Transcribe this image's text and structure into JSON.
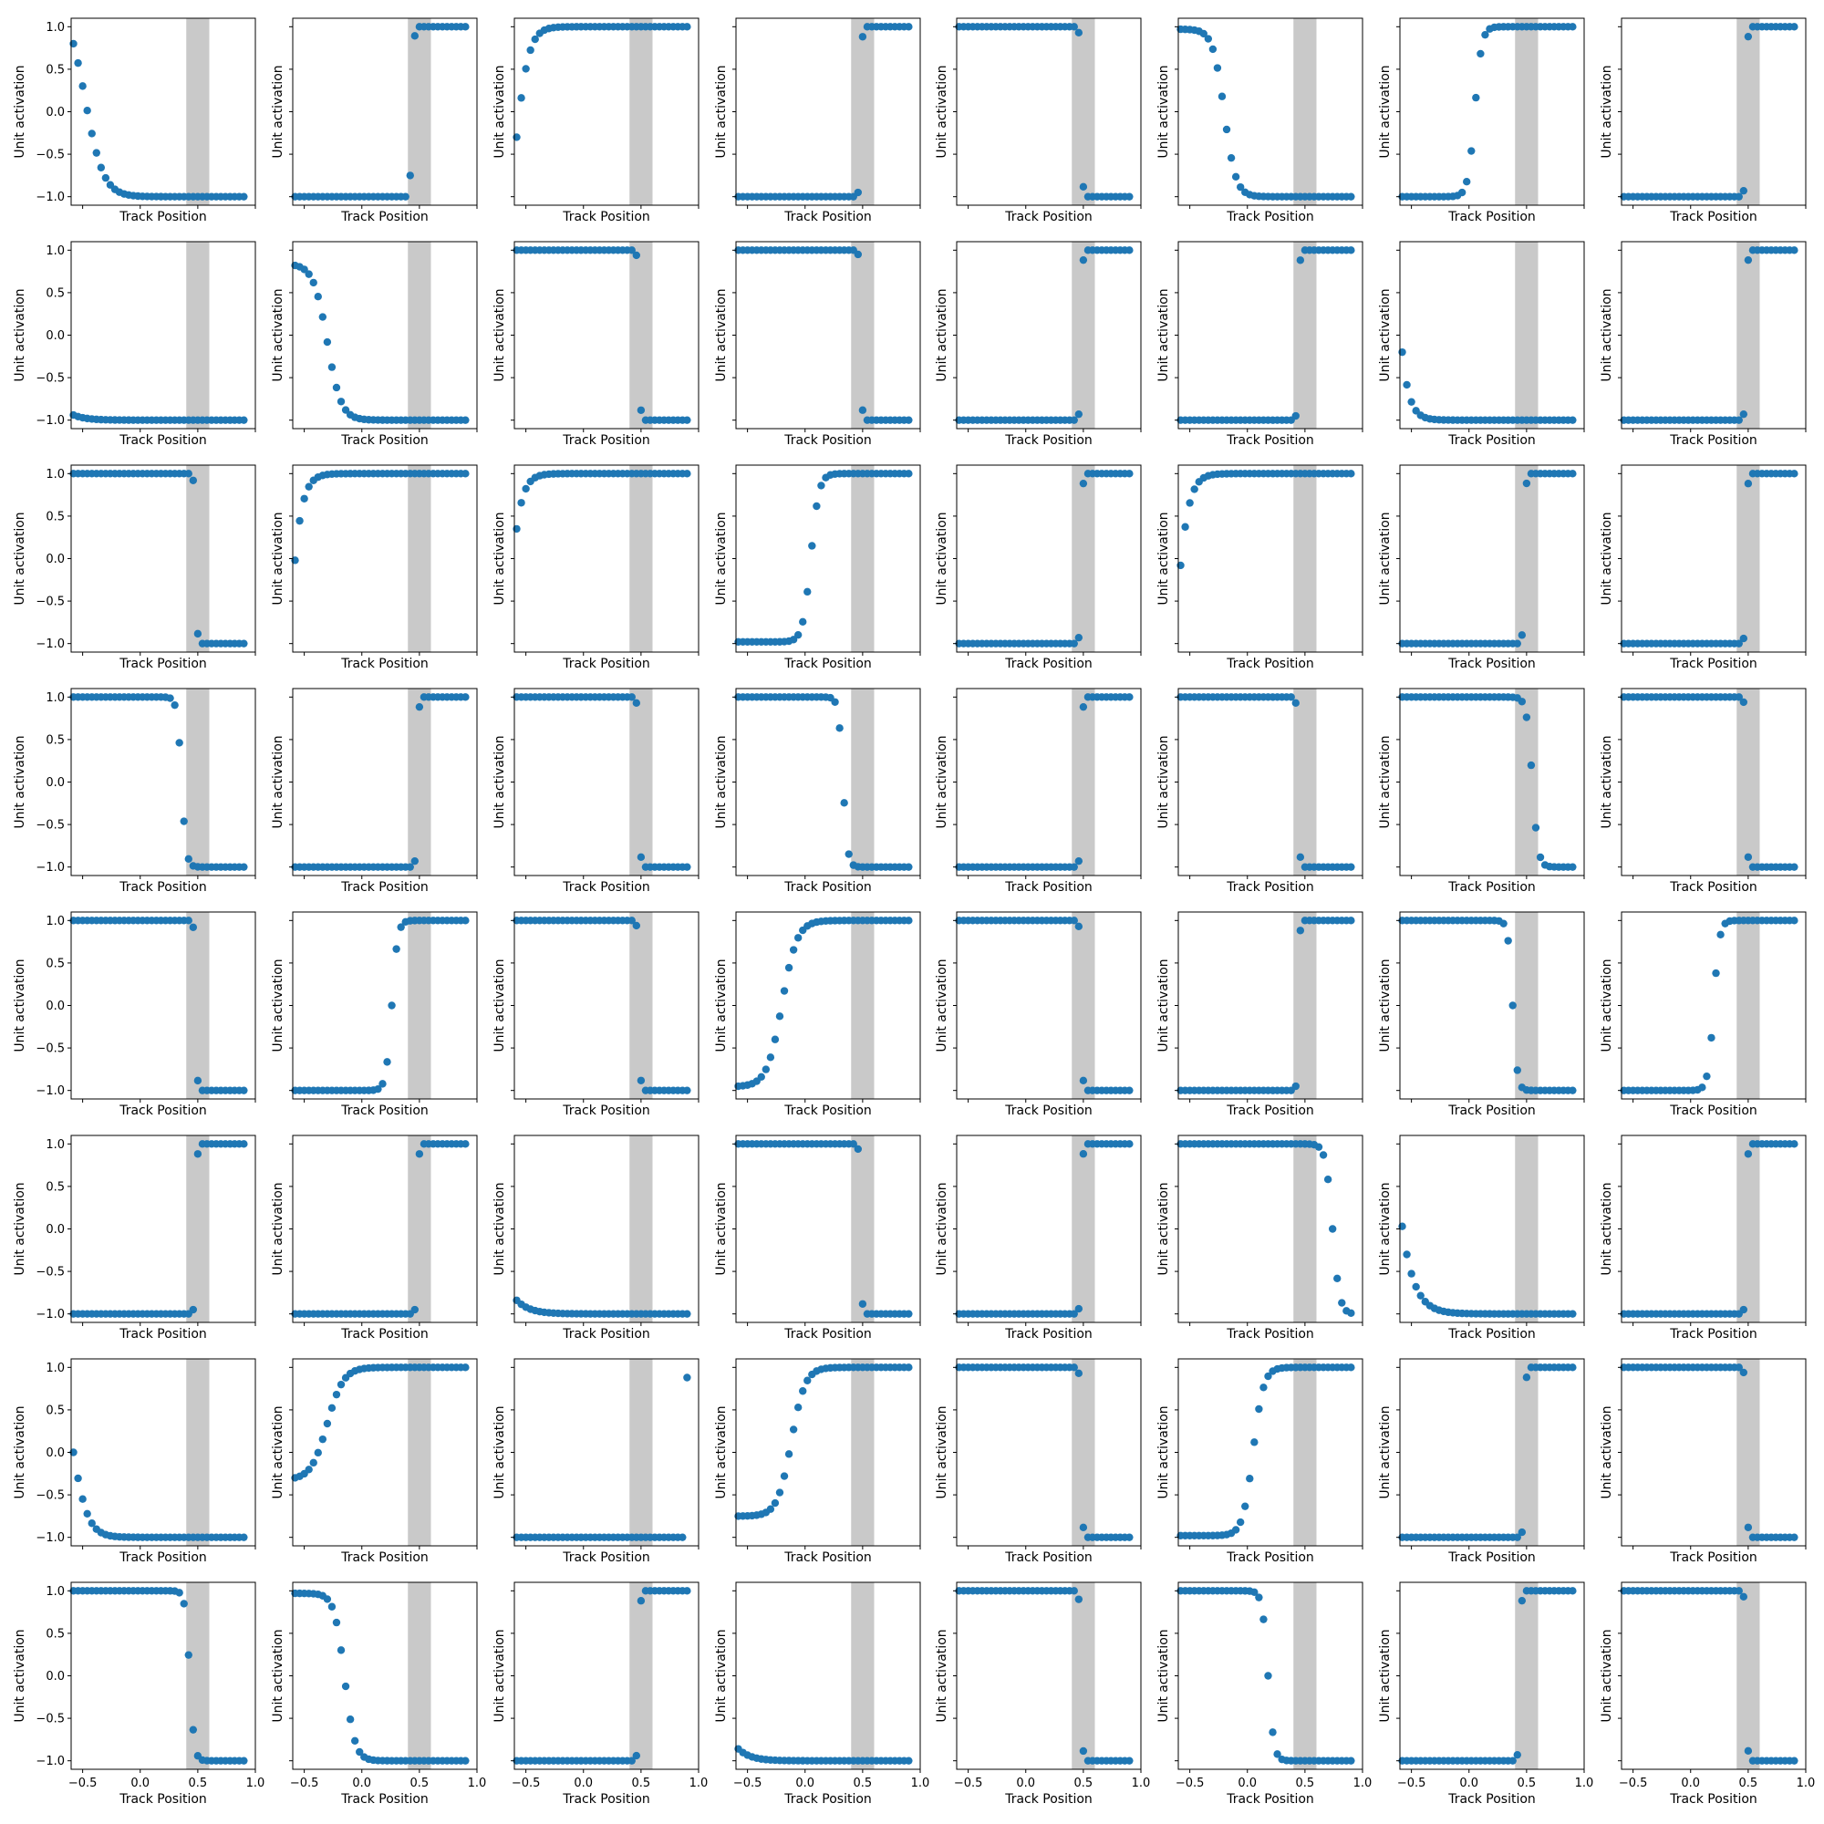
{
  "chart_data": {
    "type": "scatter",
    "layout": {
      "rows": 8,
      "cols": 8
    },
    "x_label": "Track Position",
    "y_label": "Unit activation",
    "xlim": [
      -0.6,
      1.0
    ],
    "ylim": [
      -1.1,
      1.1
    ],
    "x_ticks": [
      -0.5,
      0.0,
      0.5,
      1.0
    ],
    "x_tick_labels": [
      "−0.5",
      "0.0",
      "0.5",
      "1.0"
    ],
    "y_ticks": [
      -1.0,
      -0.5,
      0.0,
      0.5,
      1.0
    ],
    "y_tick_labels": [
      "−1.0",
      "−0.5",
      "0.0",
      "0.5",
      "1.0"
    ],
    "x_tick_labels_shown_on": "bottom row only",
    "y_tick_labels_shown_on": "first column only",
    "shaded_region": {
      "x": [
        0.4,
        0.6
      ],
      "color": "#7f7f7f"
    },
    "marker_color": "#1f77b4",
    "sample_x": {
      "start": -0.58,
      "end": 0.9,
      "count": 38
    },
    "grid": false,
    "panel_shapes": [
      [
        "d:-0.48:0.16:0.8:-1",
        "s:0.44:-1:1:-0.75",
        "u:-0.6:0.12:-0.3:1",
        "s:0.47:-1:1:-0.95",
        "s:0.48:1:-1:0.93",
        "d:-0.2:0.1:0.97:-1",
        "u:0.05:0.06:-1:1",
        "s:0.46:-1:1:-0.93"
      ],
      [
        "d:-0.8:0.2:-0.94:-1",
        "d:-0.3:0.12:0.82:-1",
        "s:0.48:1:-1:0.94",
        "s:0.48:1:-1:0.95",
        "s:0.47:-1:1:-0.93",
        "s:0.45:-1:1:-0.95",
        "d:-0.8:0.12:-0.2:-1",
        "s:0.47:-1:1:-0.93"
      ],
      [
        "s:0.47:1:-1:0.92",
        "u:-0.7:0.12:-0.02:1",
        "u:-0.75:0.12:0.35:1",
        "u:0.05:0.07:-0.98:1",
        "s:0.46:-1:1:-0.93",
        "u:-0.65:0.12:-0.08:1",
        "s:0.46:-1:1:-0.9",
        "s:0.46:-1:1:-0.94"
      ],
      [
        "d:0.36:0.04:1:-1",
        "s:0.46:-1:1:-0.93",
        "s:0.48:1:-1:0.93",
        "d:0.33:0.04:1:-1",
        "s:0.47:-1:1:-0.93",
        "s:0.45:1:-1:0.93",
        "d:0.55:0.05:1:-1",
        "s:0.46:1:-1:0.94"
      ],
      [
        "s:0.46:1:-1:0.92",
        "u:0.26:0.05:-1:1",
        "s:0.48:1:-1:0.94",
        "u:-0.2:0.13:-0.95:1",
        "s:0.47:1:-1:0.93",
        "s:0.44:-1:1:-0.95",
        "d:0.38:0.04:1:-1",
        "u:0.2:0.05:-1:1"
      ],
      [
        "s:0.46:-1:1:-0.95",
        "s:0.47:-1:1:-0.95",
        "d:-0.9:0.22:-0.84:-1",
        "s:0.47:1:-1:0.94",
        "s:0.48:-1:1:-0.94",
        "d:0.74:0.06:1:-1",
        "d:-0.9:0.2:0.03:-1",
        "s:0.48:-1:1:-0.95"
      ],
      [
        "d:-0.6:0.14:0:-1",
        "u:-0.3:0.14:-0.3:1",
        "s:0.9:-1:1:-1",
        "u:-0.12:0.12:-0.75:1",
        "s:0.48:1:-1:0.93",
        "u:0.05:0.09:-0.98:1",
        "s:0.48:-1:1:-0.94",
        "s:0.48:1:-1:0.94"
      ],
      [
        "d:0.43:0.04:1:-1",
        "d:-0.15:0.09:0.97:-1",
        "s:0.48:-1:1:-0.94",
        "d:-0.8:0.2:-0.86:-1",
        "s:0.47:1:-1:0.9",
        "d:0.18:0.05:1:-1",
        "s:0.45:-1:1:-0.93",
        "s:0.47:1:-1:0.93"
      ]
    ]
  }
}
